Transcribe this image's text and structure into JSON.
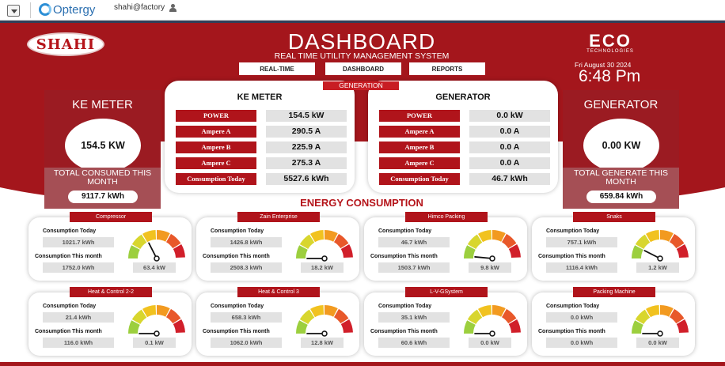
{
  "appbar": {
    "brand": "Optergy",
    "user": "shahi@factory"
  },
  "header": {
    "logo_text": "SHAHI",
    "title": "DASHBOARD",
    "subtitle": "REAL TIME UTILITY MANAGEMENT SYSTEM",
    "nav": [
      "REAL-TIME",
      "DASHBOARD",
      "REPORTS"
    ],
    "eco_mark": "ECO",
    "eco_sub": "TECHNOLOGIES",
    "date": "Fri August 30 2024",
    "time": "6:48 Pm"
  },
  "ke_panel": {
    "title": "KE METER",
    "value": "154.5 KW",
    "total_label": "TOTAL CONSUMED THIS MONTH",
    "total_value": "9117.7 kWh"
  },
  "gen_panel": {
    "title": "GENERATOR",
    "value": "0.00 KW",
    "total_label": "TOTAL GENERATE THIS MONTH",
    "total_value": "659.84 kWh"
  },
  "generation_label": "GENERATION",
  "ke_card": {
    "title": "KE METER",
    "rows": [
      {
        "label": "POWER",
        "value": "154.5 kW"
      },
      {
        "label": "Ampere A",
        "value": "290.5 A"
      },
      {
        "label": "Ampere B",
        "value": "225.9 A"
      },
      {
        "label": "Ampere C",
        "value": "275.3 A"
      },
      {
        "label": "Consumption Today",
        "value": "5527.6 kWh"
      }
    ]
  },
  "gen_card": {
    "title": "GENERATOR",
    "rows": [
      {
        "label": "POWER",
        "value": "0.0 kW"
      },
      {
        "label": "Ampere A",
        "value": "0.0 A"
      },
      {
        "label": "Ampere B",
        "value": "0.0 A"
      },
      {
        "label": "Ampere C",
        "value": "0.0 A"
      },
      {
        "label": "Consumption Today",
        "value": "46.7 kWh"
      }
    ]
  },
  "energy_title": "ENERGY CONSUMPTION",
  "labels": {
    "today": "Consumption Today",
    "month": "Consumption This month"
  },
  "consumers": [
    {
      "name": "Compressor",
      "today": "1021.7 kWh",
      "month": "1752.0 kWh",
      "power": "63.4 kW",
      "gauge_level": 0.35
    },
    {
      "name": "Zain Enterprise",
      "today": "1426.8 kWh",
      "month": "2508.3 kWh",
      "power": "18.2 kW",
      "gauge_level": 0.0
    },
    {
      "name": "Himco Packing",
      "today": "46.7 kWh",
      "month": "1503.7 kWh",
      "power": "9.8 kW",
      "gauge_level": 0.03
    },
    {
      "name": "Snaks",
      "today": "757.1 kWh",
      "month": "1116.4 kWh",
      "power": "1.2 kW",
      "gauge_level": 0.15
    },
    {
      "name": "Heat & Control 2-2",
      "today": "21.4 kWh",
      "month": "116.0 kWh",
      "power": "0.1 kW",
      "gauge_level": 0.0
    },
    {
      "name": "Heat & Control 3",
      "today": "658.3 kWh",
      "month": "1062.0 kWh",
      "power": "12.8 kW",
      "gauge_level": 0.0
    },
    {
      "name": "L-V-GSystem",
      "today": "35.1 kWh",
      "month": "60.6 kWh",
      "power": "0.0 kW",
      "gauge_level": 0.0
    },
    {
      "name": "Packing Machine",
      "today": "0.0 kWh",
      "month": "0.0 kWh",
      "power": "0.0 kW",
      "gauge_level": 0.0
    }
  ],
  "colors": {
    "brand_red": "#a4161c",
    "label_red": "#b0141b",
    "gauge": [
      "#9ccf3e",
      "#d8d62e",
      "#f1c21f",
      "#f29a20",
      "#e8582a",
      "#d11f2a"
    ]
  }
}
